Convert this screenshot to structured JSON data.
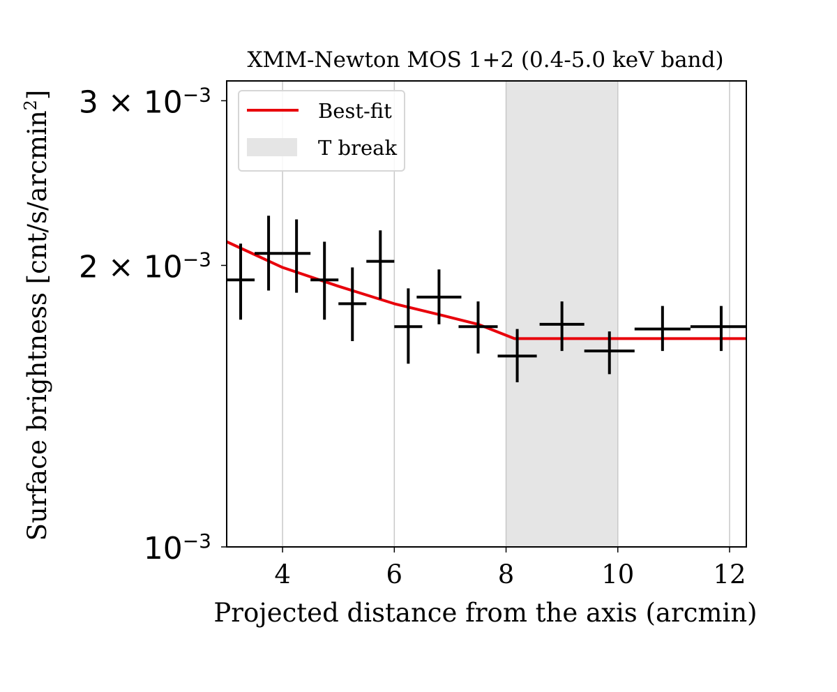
{
  "chart_data": {
    "type": "scatter",
    "title": "XMM-Newton MOS 1+2 (0.4-5.0 keV band)",
    "xlabel": "Projected distance from the axis (arcmin)",
    "ylabel": "Surface brightness [cnt/s/arcmin",
    "ylabel_superscript": "2",
    "ylabel_suffix": "]",
    "xlim": [
      3.0,
      12.3
    ],
    "ylim": [
      0.001,
      0.00315
    ],
    "yscale": "log",
    "grid": "x",
    "legend_position": "top-left",
    "x_ticks": [
      {
        "value": 4,
        "label": "4"
      },
      {
        "value": 6,
        "label": "6"
      },
      {
        "value": 8,
        "label": "8"
      },
      {
        "value": 10,
        "label": "10"
      },
      {
        "value": 12,
        "label": "12"
      }
    ],
    "y_ticks": [
      {
        "value": 0.001,
        "label_base": "10",
        "label_exp": "−3"
      },
      {
        "value": 0.002,
        "label_base": "2 × 10",
        "label_exp": "−3"
      },
      {
        "value": 0.003,
        "label_base": "3 × 10",
        "label_exp": "−3"
      }
    ],
    "colors": {
      "data": "#000000",
      "fit": "#e8000b",
      "band": "#e5e5e5",
      "grid": "#c8c8c8"
    },
    "legend": [
      {
        "name": "Best-fit",
        "kind": "line"
      },
      {
        "name": "T break",
        "kind": "patch"
      }
    ],
    "bands": [
      {
        "name": "T break",
        "x0": 8.0,
        "x1": 10.0
      }
    ],
    "data_points": [
      {
        "x": 3.25,
        "xerr": 0.25,
        "y": 0.00193,
        "ylo": 0.00175,
        "yhi": 0.00211
      },
      {
        "x": 3.75,
        "xerr": 0.25,
        "y": 0.00206,
        "ylo": 0.00188,
        "yhi": 0.00226
      },
      {
        "x": 4.25,
        "xerr": 0.25,
        "y": 0.00206,
        "ylo": 0.00187,
        "yhi": 0.00224
      },
      {
        "x": 4.75,
        "xerr": 0.25,
        "y": 0.00193,
        "ylo": 0.00175,
        "yhi": 0.00212
      },
      {
        "x": 5.25,
        "xerr": 0.25,
        "y": 0.00182,
        "ylo": 0.00166,
        "yhi": 0.00199
      },
      {
        "x": 5.75,
        "xerr": 0.25,
        "y": 0.00202,
        "ylo": 0.00184,
        "yhi": 0.00218
      },
      {
        "x": 6.25,
        "xerr": 0.25,
        "y": 0.00172,
        "ylo": 0.00157,
        "yhi": 0.00189
      },
      {
        "x": 6.8,
        "xerr": 0.4,
        "y": 0.00185,
        "ylo": 0.00173,
        "yhi": 0.00198
      },
      {
        "x": 7.5,
        "xerr": 0.35,
        "y": 0.00172,
        "ylo": 0.00161,
        "yhi": 0.00183
      },
      {
        "x": 8.2,
        "xerr": 0.35,
        "y": 0.0016,
        "ylo": 0.0015,
        "yhi": 0.00171
      },
      {
        "x": 9.0,
        "xerr": 0.4,
        "y": 0.00173,
        "ylo": 0.00162,
        "yhi": 0.00183
      },
      {
        "x": 9.85,
        "xerr": 0.45,
        "y": 0.00162,
        "ylo": 0.00153,
        "yhi": 0.0017
      },
      {
        "x": 10.8,
        "xerr": 0.5,
        "y": 0.00171,
        "ylo": 0.00162,
        "yhi": 0.00181
      },
      {
        "x": 11.85,
        "xerr": 0.55,
        "y": 0.00172,
        "ylo": 0.00162,
        "yhi": 0.00181
      }
    ],
    "fit_curve": [
      {
        "x": 3.0,
        "y": 0.00212
      },
      {
        "x": 4.0,
        "y": 0.00199
      },
      {
        "x": 5.0,
        "y": 0.0019
      },
      {
        "x": 6.0,
        "y": 0.00182
      },
      {
        "x": 7.0,
        "y": 0.00176
      },
      {
        "x": 7.5,
        "y": 0.00173
      },
      {
        "x": 8.15,
        "y": 0.00167
      },
      {
        "x": 9.0,
        "y": 0.00167
      },
      {
        "x": 10.0,
        "y": 0.00167
      },
      {
        "x": 11.0,
        "y": 0.00167
      },
      {
        "x": 12.3,
        "y": 0.00167
      }
    ]
  }
}
